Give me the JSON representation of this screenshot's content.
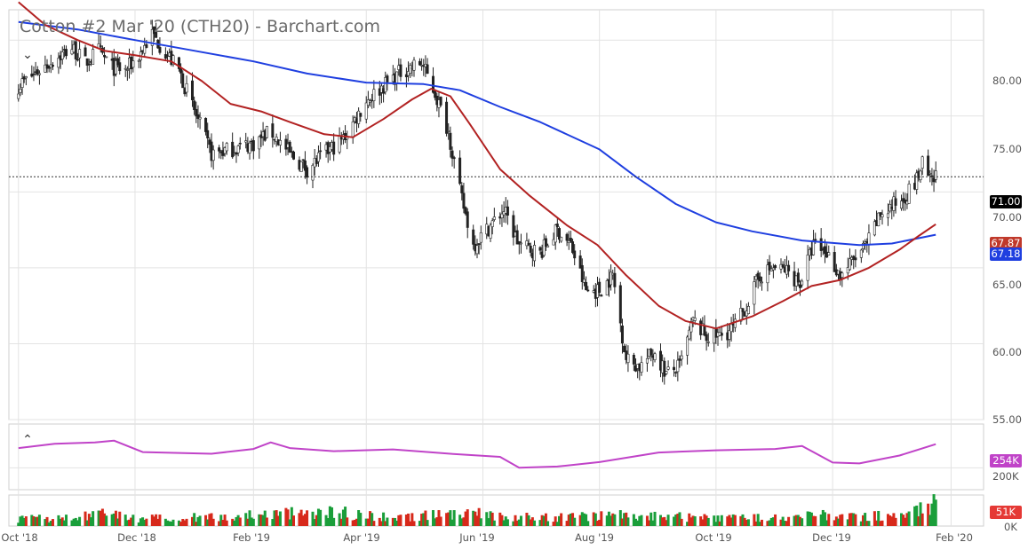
{
  "header": {
    "title": "Cotton #2 Mar '20 (CTH20) - Barchart.com"
  },
  "price_tags": {
    "last": "71.00",
    "ma_slow": "67.87",
    "ma_fast": "67.18",
    "oi": "254K",
    "volume": "51K"
  },
  "colors": {
    "up": "#1a9e3a",
    "down": "#d7291b",
    "ma_red": "#b22222",
    "ma_blue": "#1f3fe0",
    "oi_line": "#c043c8",
    "grid": "#e3e3e3",
    "last_tag": "#000000"
  },
  "icons": {
    "collapse_main": "chevron-down-icon",
    "collapse_lower": "chevron-up-icon"
  },
  "chart_data": [
    {
      "type": "candlestick",
      "title": "Cotton #2 Mar '20 (CTH20) - Barchart.com",
      "x_tick_labels": [
        "Oct '18",
        "Dec '18",
        "Feb '19",
        "Apr '19",
        "Jun '19",
        "Aug '19",
        "Oct '19",
        "Dec '19",
        "Feb '20"
      ],
      "y_tick_labels": [
        "80.00",
        "75.00",
        "70.00",
        "65.00",
        "60.00",
        "55.00"
      ],
      "ylim": [
        55,
        82
      ],
      "last_price": 71.0,
      "grid": true,
      "anchors_close": [
        [
          "2018-10-01",
          77.0
        ],
        [
          "2018-10-15",
          78.3
        ],
        [
          "2018-10-29",
          79.5
        ],
        [
          "2018-11-05",
          78.5
        ],
        [
          "2018-11-12",
          79.3
        ],
        [
          "2018-11-19",
          78.2
        ],
        [
          "2018-11-26",
          78.0
        ],
        [
          "2018-12-03",
          79.0
        ],
        [
          "2018-12-10",
          80.4
        ],
        [
          "2018-12-17",
          79.2
        ],
        [
          "2018-12-24",
          78.0
        ],
        [
          "2019-01-02",
          75.0
        ],
        [
          "2019-01-10",
          72.5
        ],
        [
          "2019-01-20",
          72.8
        ],
        [
          "2019-02-01",
          73.2
        ],
        [
          "2019-02-10",
          74.0
        ],
        [
          "2019-02-20",
          72.5
        ],
        [
          "2019-03-01",
          71.5
        ],
        [
          "2019-03-10",
          72.5
        ],
        [
          "2019-03-20",
          73.5
        ],
        [
          "2019-04-01",
          76.0
        ],
        [
          "2019-04-10",
          77.0
        ],
        [
          "2019-04-20",
          78.0
        ],
        [
          "2019-04-30",
          78.5
        ],
        [
          "2019-05-07",
          76.5
        ],
        [
          "2019-05-14",
          74.0
        ],
        [
          "2019-05-20",
          70.0
        ],
        [
          "2019-05-27",
          66.5
        ],
        [
          "2019-06-03",
          67.5
        ],
        [
          "2019-06-12",
          68.8
        ],
        [
          "2019-06-20",
          66.5
        ],
        [
          "2019-07-01",
          66.0
        ],
        [
          "2019-07-10",
          67.5
        ],
        [
          "2019-07-17",
          66.5
        ],
        [
          "2019-07-25",
          63.5
        ],
        [
          "2019-08-01",
          63.5
        ],
        [
          "2019-08-08",
          64.5
        ],
        [
          "2019-08-15",
          59.0
        ],
        [
          "2019-08-22",
          58.5
        ],
        [
          "2019-08-30",
          59.5
        ],
        [
          "2019-09-05",
          58.0
        ],
        [
          "2019-09-12",
          58.5
        ],
        [
          "2019-09-19",
          61.5
        ],
        [
          "2019-09-26",
          60.5
        ],
        [
          "2019-10-03",
          60.5
        ],
        [
          "2019-10-10",
          61.0
        ],
        [
          "2019-10-17",
          62.5
        ],
        [
          "2019-10-24",
          64.5
        ],
        [
          "2019-10-31",
          65.0
        ],
        [
          "2019-11-07",
          64.8
        ],
        [
          "2019-11-14",
          64.0
        ],
        [
          "2019-11-21",
          66.5
        ],
        [
          "2019-11-28",
          66.0
        ],
        [
          "2019-12-05",
          64.5
        ],
        [
          "2019-12-12",
          65.5
        ],
        [
          "2019-12-19",
          66.5
        ],
        [
          "2019-12-26",
          68.5
        ],
        [
          "2020-01-06",
          69.5
        ],
        [
          "2020-01-13",
          70.5
        ],
        [
          "2020-01-17",
          71.8
        ],
        [
          "2020-01-22",
          70.5
        ],
        [
          "2020-01-24",
          71.0
        ]
      ],
      "moving_average_red": [
        [
          "2018-10-01",
          82.5
        ],
        [
          "2018-10-15",
          81.0
        ],
        [
          "2018-11-01",
          80.0
        ],
        [
          "2018-11-15",
          79.3
        ],
        [
          "2018-12-01",
          79.0
        ],
        [
          "2018-12-20",
          78.6
        ],
        [
          "2019-01-05",
          77.3
        ],
        [
          "2019-01-20",
          75.8
        ],
        [
          "2019-02-05",
          75.3
        ],
        [
          "2019-02-20",
          74.6
        ],
        [
          "2019-03-10",
          73.8
        ],
        [
          "2019-03-25",
          73.6
        ],
        [
          "2019-04-10",
          74.8
        ],
        [
          "2019-04-25",
          76.1
        ],
        [
          "2019-05-05",
          76.8
        ],
        [
          "2019-05-15",
          76.3
        ],
        [
          "2019-05-25",
          74.5
        ],
        [
          "2019-06-10",
          71.5
        ],
        [
          "2019-06-25",
          69.8
        ],
        [
          "2019-07-15",
          67.8
        ],
        [
          "2019-07-31",
          66.5
        ],
        [
          "2019-08-15",
          64.5
        ],
        [
          "2019-09-01",
          62.5
        ],
        [
          "2019-09-15",
          61.5
        ],
        [
          "2019-10-01",
          61.0
        ],
        [
          "2019-10-20",
          61.8
        ],
        [
          "2019-11-05",
          62.8
        ],
        [
          "2019-11-20",
          63.8
        ],
        [
          "2019-12-05",
          64.2
        ],
        [
          "2019-12-20",
          65.0
        ],
        [
          "2020-01-05",
          66.2
        ],
        [
          "2020-01-15",
          67.1
        ],
        [
          "2020-01-24",
          67.87
        ]
      ],
      "moving_average_blue": [
        [
          "2018-10-01",
          81.2
        ],
        [
          "2018-11-01",
          80.7
        ],
        [
          "2018-12-01",
          80.0
        ],
        [
          "2019-01-01",
          79.3
        ],
        [
          "2019-02-01",
          78.6
        ],
        [
          "2019-03-01",
          77.8
        ],
        [
          "2019-04-01",
          77.2
        ],
        [
          "2019-05-01",
          77.1
        ],
        [
          "2019-05-20",
          76.7
        ],
        [
          "2019-06-10",
          75.6
        ],
        [
          "2019-07-01",
          74.6
        ],
        [
          "2019-08-01",
          72.8
        ],
        [
          "2019-08-20",
          71.0
        ],
        [
          "2019-09-10",
          69.2
        ],
        [
          "2019-10-01",
          68.0
        ],
        [
          "2019-10-20",
          67.4
        ],
        [
          "2019-11-15",
          66.8
        ],
        [
          "2019-12-15",
          66.5
        ],
        [
          "2020-01-01",
          66.6
        ],
        [
          "2020-01-24",
          67.18
        ]
      ]
    },
    {
      "type": "line",
      "series_label": "254K",
      "y_tick_labels": [
        "200K"
      ],
      "open_interest": [
        [
          "2018-10-01",
          245
        ],
        [
          "2018-10-20",
          255
        ],
        [
          "2018-11-10",
          258
        ],
        [
          "2018-11-20",
          262
        ],
        [
          "2018-12-05",
          236
        ],
        [
          "2019-01-10",
          232
        ],
        [
          "2019-02-01",
          243
        ],
        [
          "2019-02-10",
          258
        ],
        [
          "2019-02-20",
          245
        ],
        [
          "2019-03-15",
          238
        ],
        [
          "2019-04-15",
          242
        ],
        [
          "2019-05-15",
          232
        ],
        [
          "2019-06-10",
          225
        ],
        [
          "2019-06-20",
          200
        ],
        [
          "2019-07-10",
          203
        ],
        [
          "2019-08-01",
          213
        ],
        [
          "2019-09-01",
          235
        ],
        [
          "2019-10-01",
          240
        ],
        [
          "2019-11-01",
          243
        ],
        [
          "2019-11-15",
          250
        ],
        [
          "2019-12-01",
          212
        ],
        [
          "2019-12-15",
          210
        ],
        [
          "2020-01-05",
          228
        ],
        [
          "2020-01-24",
          254
        ]
      ]
    },
    {
      "type": "bar",
      "series_label": "51K",
      "y_tick_labels": [
        "0K"
      ],
      "volume_k_anchors": [
        [
          "2018-10-01",
          16
        ],
        [
          "2018-11-01",
          19
        ],
        [
          "2018-11-15",
          30
        ],
        [
          "2018-12-01",
          16
        ],
        [
          "2019-01-01",
          20
        ],
        [
          "2019-02-20",
          28
        ],
        [
          "2019-03-10",
          34
        ],
        [
          "2019-04-15",
          18
        ],
        [
          "2019-05-20",
          30
        ],
        [
          "2019-06-15",
          22
        ],
        [
          "2019-07-15",
          20
        ],
        [
          "2019-08-15",
          26
        ],
        [
          "2019-09-15",
          20
        ],
        [
          "2019-10-15",
          18
        ],
        [
          "2019-11-15",
          25
        ],
        [
          "2019-12-15",
          22
        ],
        [
          "2020-01-10",
          24
        ],
        [
          "2020-01-24",
          51
        ]
      ]
    }
  ]
}
